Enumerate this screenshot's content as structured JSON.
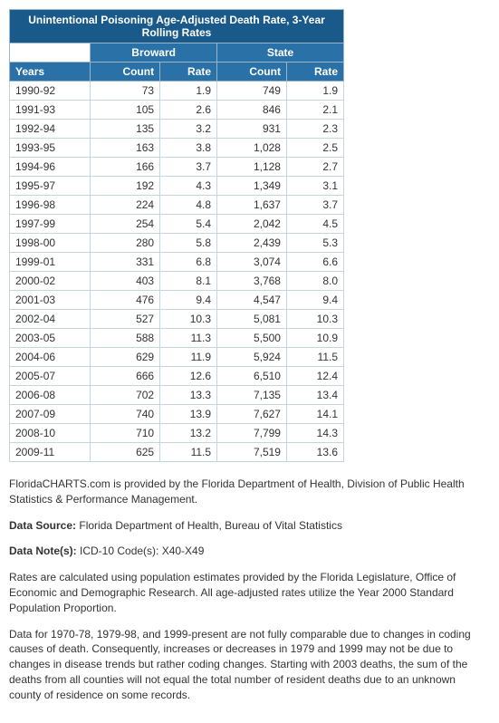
{
  "table": {
    "title": "Unintentional Poisoning Age-Adjusted Death Rate, 3-Year Rolling Rates",
    "group_headers": [
      "Broward",
      "State"
    ],
    "columns": {
      "years": "Years",
      "count": "Count",
      "rate": "Rate"
    },
    "rows": [
      {
        "year": "1990-92",
        "c1": "73",
        "r1": "1.9",
        "c2": "749",
        "r2": "1.9"
      },
      {
        "year": "1991-93",
        "c1": "105",
        "r1": "2.6",
        "c2": "846",
        "r2": "2.1"
      },
      {
        "year": "1992-94",
        "c1": "135",
        "r1": "3.2",
        "c2": "931",
        "r2": "2.3"
      },
      {
        "year": "1993-95",
        "c1": "163",
        "r1": "3.8",
        "c2": "1,028",
        "r2": "2.5"
      },
      {
        "year": "1994-96",
        "c1": "166",
        "r1": "3.7",
        "c2": "1,128",
        "r2": "2.7"
      },
      {
        "year": "1995-97",
        "c1": "192",
        "r1": "4.3",
        "c2": "1,349",
        "r2": "3.1"
      },
      {
        "year": "1996-98",
        "c1": "224",
        "r1": "4.8",
        "c2": "1,637",
        "r2": "3.7"
      },
      {
        "year": "1997-99",
        "c1": "254",
        "r1": "5.4",
        "c2": "2,042",
        "r2": "4.5"
      },
      {
        "year": "1998-00",
        "c1": "280",
        "r1": "5.8",
        "c2": "2,439",
        "r2": "5.3"
      },
      {
        "year": "1999-01",
        "c1": "331",
        "r1": "6.8",
        "c2": "3,074",
        "r2": "6.6"
      },
      {
        "year": "2000-02",
        "c1": "403",
        "r1": "8.1",
        "c2": "3,768",
        "r2": "8.0"
      },
      {
        "year": "2001-03",
        "c1": "476",
        "r1": "9.4",
        "c2": "4,547",
        "r2": "9.4"
      },
      {
        "year": "2002-04",
        "c1": "527",
        "r1": "10.3",
        "c2": "5,081",
        "r2": "10.3"
      },
      {
        "year": "2003-05",
        "c1": "588",
        "r1": "11.3",
        "c2": "5,500",
        "r2": "10.9"
      },
      {
        "year": "2004-06",
        "c1": "629",
        "r1": "11.9",
        "c2": "5,924",
        "r2": "11.5"
      },
      {
        "year": "2005-07",
        "c1": "666",
        "r1": "12.6",
        "c2": "6,510",
        "r2": "12.4"
      },
      {
        "year": "2006-08",
        "c1": "702",
        "r1": "13.3",
        "c2": "7,135",
        "r2": "13.4"
      },
      {
        "year": "2007-09",
        "c1": "740",
        "r1": "13.9",
        "c2": "7,627",
        "r2": "14.1"
      },
      {
        "year": "2008-10",
        "c1": "710",
        "r1": "13.2",
        "c2": "7,799",
        "r2": "14.3"
      },
      {
        "year": "2009-11",
        "c1": "625",
        "r1": "11.5",
        "c2": "7,519",
        "r2": "13.6"
      }
    ]
  },
  "notes": {
    "provider": "FloridaCHARTS.com is provided by the Florida Department of Health, Division of Public Health Statistics & Performance Management.",
    "source_label": "Data Source:",
    "source_text": " Florida Department of Health, Bureau of Vital Statistics",
    "note_label": "Data Note(s):",
    "note_text": " ICD-10 Code(s): X40-X49",
    "rates_text": "Rates are calculated using population estimates provided by the Florida Legislature, Office of Economic and Demographic Research. All age-adjusted rates utilize the Year 2000 Standard Population Proportion.",
    "disclaimer": "Data for 1970-78, 1979-98, and 1999-present are not fully comparable due to changes in coding causes of death. Consequently, increases or decreases in 1979 and 1999 may not be due to changes in disease trends but rather coding changes. Starting with 2003 deaths, the sum of the deaths from all counties will not equal the total number of resident deaths due to an unknown county of residence on some records."
  },
  "style": {
    "header_bg": "#1a5a8a",
    "subheader_bg": "#2971a7",
    "header_text": "#ffffff",
    "border_color": "#c4d5e0",
    "body_text": "#333333"
  }
}
